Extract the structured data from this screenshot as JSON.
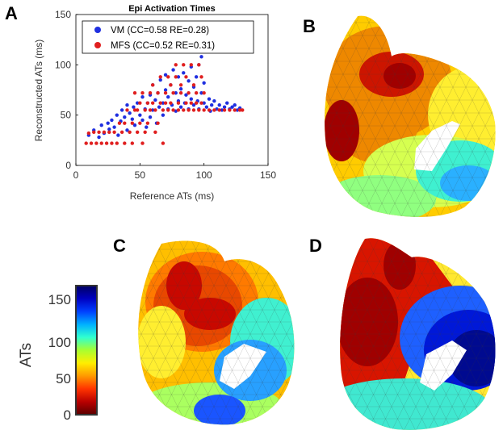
{
  "panels": {
    "a": "A",
    "b": "B",
    "c": "C",
    "d": "D"
  },
  "chart_data": {
    "type": "scatter",
    "title": "Epi Activation Times",
    "xlabel": "Reference ATs (ms)",
    "ylabel": "Reconstructed ATs (ms)",
    "xlim": [
      0,
      150
    ],
    "ylim": [
      0,
      150
    ],
    "xticks": [
      "0",
      "50",
      "100",
      "150"
    ],
    "yticks": [
      "0",
      "50",
      "100",
      "150"
    ],
    "legend_position": "top",
    "series": [
      {
        "name": "VM (CC=0.58 RE=0.28)",
        "color": "#1f2fe0",
        "points": [
          [
            10,
            30
          ],
          [
            14,
            35
          ],
          [
            18,
            28
          ],
          [
            20,
            40
          ],
          [
            22,
            32
          ],
          [
            25,
            42
          ],
          [
            26,
            36
          ],
          [
            28,
            45
          ],
          [
            30,
            38
          ],
          [
            32,
            50
          ],
          [
            33,
            30
          ],
          [
            35,
            44
          ],
          [
            36,
            55
          ],
          [
            38,
            48
          ],
          [
            40,
            35
          ],
          [
            40,
            60
          ],
          [
            42,
            52
          ],
          [
            44,
            46
          ],
          [
            45,
            58
          ],
          [
            46,
            40
          ],
          [
            48,
            62
          ],
          [
            50,
            50
          ],
          [
            52,
            45
          ],
          [
            52,
            68
          ],
          [
            54,
            56
          ],
          [
            55,
            38
          ],
          [
            56,
            62
          ],
          [
            58,
            70
          ],
          [
            58,
            48
          ],
          [
            60,
            55
          ],
          [
            60,
            80
          ],
          [
            62,
            65
          ],
          [
            63,
            42
          ],
          [
            64,
            72
          ],
          [
            65,
            58
          ],
          [
            66,
            85
          ],
          [
            68,
            62
          ],
          [
            68,
            50
          ],
          [
            70,
            75
          ],
          [
            70,
            90
          ],
          [
            72,
            56
          ],
          [
            72,
            68
          ],
          [
            74,
            80
          ],
          [
            75,
            60
          ],
          [
            76,
            95
          ],
          [
            78,
            72
          ],
          [
            78,
            54
          ],
          [
            80,
            64
          ],
          [
            80,
            88
          ],
          [
            82,
            58
          ],
          [
            82,
            76
          ],
          [
            84,
            92
          ],
          [
            85,
            62
          ],
          [
            86,
            70
          ],
          [
            88,
            84
          ],
          [
            88,
            56
          ],
          [
            90,
            66
          ],
          [
            90,
            98
          ],
          [
            92,
            78
          ],
          [
            92,
            60
          ],
          [
            94,
            88
          ],
          [
            95,
            64
          ],
          [
            96,
            100
          ],
          [
            96,
            56
          ],
          [
            98,
            72
          ],
          [
            98,
            108
          ],
          [
            100,
            62
          ],
          [
            100,
            82
          ],
          [
            102,
            58
          ],
          [
            104,
            66
          ],
          [
            105,
            54
          ],
          [
            106,
            60
          ],
          [
            108,
            64
          ],
          [
            110,
            56
          ],
          [
            112,
            60
          ],
          [
            114,
            55
          ],
          [
            116,
            58
          ],
          [
            118,
            62
          ],
          [
            120,
            56
          ],
          [
            122,
            58
          ],
          [
            124,
            60
          ],
          [
            126,
            55
          ],
          [
            128,
            57
          ]
        ]
      },
      {
        "name": "MFS (CC=0.52 RE=0.31)",
        "color": "#e01f1f",
        "points": [
          [
            8,
            22
          ],
          [
            10,
            32
          ],
          [
            12,
            22
          ],
          [
            14,
            33
          ],
          [
            16,
            22
          ],
          [
            18,
            33
          ],
          [
            20,
            22
          ],
          [
            22,
            33
          ],
          [
            24,
            22
          ],
          [
            26,
            33
          ],
          [
            28,
            22
          ],
          [
            30,
            33
          ],
          [
            32,
            22
          ],
          [
            34,
            42
          ],
          [
            36,
            33
          ],
          [
            38,
            22
          ],
          [
            38,
            42
          ],
          [
            40,
            55
          ],
          [
            42,
            33
          ],
          [
            44,
            22
          ],
          [
            44,
            42
          ],
          [
            46,
            55
          ],
          [
            46,
            72
          ],
          [
            48,
            33
          ],
          [
            48,
            55
          ],
          [
            50,
            42
          ],
          [
            50,
            62
          ],
          [
            52,
            72
          ],
          [
            52,
            22
          ],
          [
            54,
            55
          ],
          [
            54,
            33
          ],
          [
            56,
            62
          ],
          [
            56,
            42
          ],
          [
            58,
            72
          ],
          [
            58,
            55
          ],
          [
            60,
            62
          ],
          [
            60,
            80
          ],
          [
            62,
            33
          ],
          [
            62,
            55
          ],
          [
            64,
            72
          ],
          [
            64,
            42
          ],
          [
            66,
            62
          ],
          [
            66,
            88
          ],
          [
            68,
            55
          ],
          [
            68,
            22
          ],
          [
            70,
            72
          ],
          [
            70,
            62
          ],
          [
            72,
            55
          ],
          [
            72,
            88
          ],
          [
            74,
            80
          ],
          [
            74,
            62
          ],
          [
            76,
            55
          ],
          [
            76,
            72
          ],
          [
            78,
            88
          ],
          [
            78,
            100
          ],
          [
            80,
            62
          ],
          [
            80,
            55
          ],
          [
            82,
            72
          ],
          [
            82,
            80
          ],
          [
            84,
            55
          ],
          [
            84,
            100
          ],
          [
            86,
            62
          ],
          [
            86,
            88
          ],
          [
            88,
            55
          ],
          [
            88,
            72
          ],
          [
            90,
            62
          ],
          [
            90,
            100
          ],
          [
            92,
            55
          ],
          [
            92,
            80
          ],
          [
            94,
            62
          ],
          [
            94,
            72
          ],
          [
            96,
            55
          ],
          [
            96,
            100
          ],
          [
            98,
            62
          ],
          [
            98,
            88
          ],
          [
            100,
            55
          ],
          [
            100,
            72
          ],
          [
            104,
            55
          ],
          [
            108,
            55
          ],
          [
            112,
            55
          ],
          [
            116,
            55
          ],
          [
            120,
            55
          ],
          [
            124,
            55
          ],
          [
            128,
            55
          ],
          [
            130,
            55
          ]
        ]
      }
    ]
  },
  "colorbar": {
    "label": "ATs",
    "ticks": [
      "0",
      "50",
      "100",
      "150"
    ],
    "colors": [
      "#5a0000",
      "#b80000",
      "#ff3300",
      "#ff9900",
      "#ffee00",
      "#a8ff30",
      "#30ffd0",
      "#00b0ff",
      "#0040ff",
      "#0000c0",
      "#000060"
    ]
  },
  "maps": {
    "b": {
      "colors": [
        "#ffcc00",
        "#ee8800",
        "#cc1500",
        "#a00000",
        "#ff7a00",
        "#ffee30",
        "#d6ff50",
        "#90ff80",
        "#3ff0d0",
        "#2ab0ff",
        "#ffffff"
      ]
    },
    "c": {
      "colors": [
        "#ffbf00",
        "#e84800",
        "#c80800",
        "#ff7a00",
        "#ffee30",
        "#aaff60",
        "#40f0d0",
        "#28a0ff",
        "#1a55ff",
        "#ffffff"
      ]
    },
    "d": {
      "colors": [
        "#d81500",
        "#a00000",
        "#ff8c00",
        "#ffe830",
        "#90ff70",
        "#40e8d0",
        "#1e60ff",
        "#0018d8",
        "#000a90",
        "#ffffff"
      ]
    }
  }
}
